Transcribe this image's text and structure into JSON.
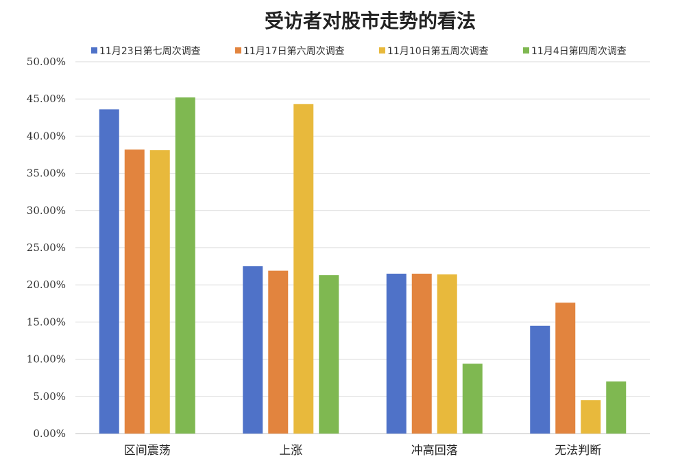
{
  "chart_data": {
    "type": "bar",
    "title": "受访者对股市走势的看法",
    "xlabel": "",
    "ylabel": "",
    "categories": [
      "区间震荡",
      "上涨",
      "冲高回落",
      "无法判断"
    ],
    "series": [
      {
        "name": "11月23日第七周次调查",
        "color": "#4f72c8",
        "values": [
          43.6,
          22.5,
          21.5,
          14.5
        ]
      },
      {
        "name": "11月17日第六周次调查",
        "color": "#e2843e",
        "values": [
          38.2,
          21.9,
          21.5,
          17.6
        ]
      },
      {
        "name": "11月10日第五周次调查",
        "color": "#e8b93c",
        "values": [
          38.1,
          44.3,
          21.4,
          4.5
        ]
      },
      {
        "name": "11月4日第四周次调查",
        "color": "#7fb851",
        "values": [
          45.2,
          21.3,
          9.4,
          7.0
        ]
      }
    ],
    "y_ticks": [
      "0.00%",
      "5.00%",
      "10.00%",
      "15.00%",
      "20.00%",
      "25.00%",
      "30.00%",
      "35.00%",
      "40.00%",
      "45.00%",
      "50.00%"
    ],
    "ylim": [
      0,
      50
    ],
    "grid": true,
    "legend_position": "top"
  }
}
